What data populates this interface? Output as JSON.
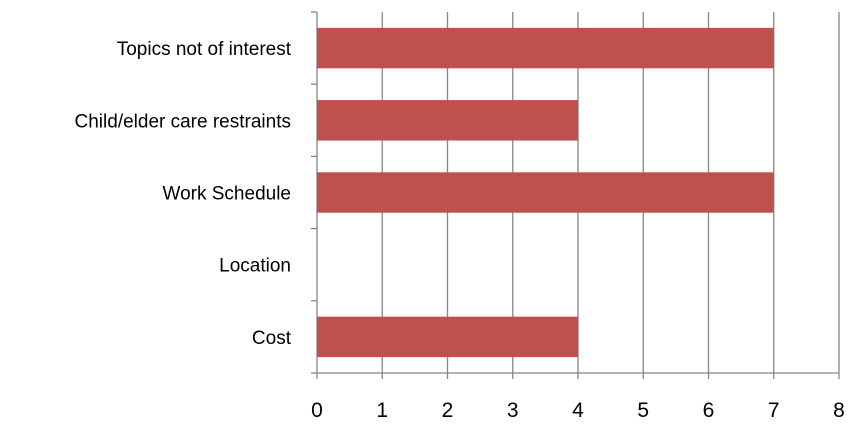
{
  "chart_data": {
    "type": "bar",
    "orientation": "horizontal",
    "categories": [
      "Topics not of interest",
      "Child/elder care restraints",
      "Work Schedule",
      "Location",
      "Cost"
    ],
    "values": [
      7,
      4,
      7,
      0,
      4
    ],
    "title": "",
    "xlabel": "",
    "ylabel": "",
    "xlim": [
      0,
      8
    ],
    "xticks": [
      "0",
      "1",
      "2",
      "3",
      "4",
      "5",
      "6",
      "7",
      "8"
    ],
    "grid": true,
    "legend": "none",
    "colors": {
      "bar": "#C0504D",
      "grid": "#868686",
      "axis": "#868686"
    }
  }
}
